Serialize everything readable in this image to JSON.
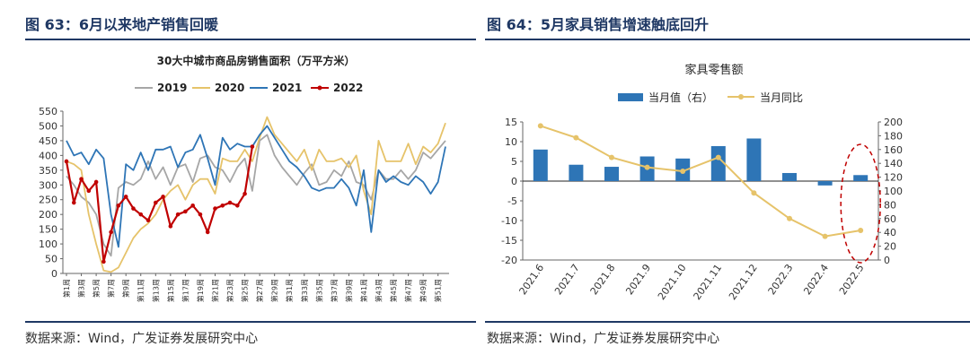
{
  "left": {
    "figure_title": "图 63：6月以来地产销售回暖",
    "source": "数据来源：Wind，广发证券发展研究中心"
  },
  "right": {
    "figure_title": "图 64：5月家具销售增速触底回升",
    "source": "数据来源：Wind，广发证券发展研究中心"
  },
  "chart_data": [
    {
      "type": "line",
      "title": "30大中城市商品房销售面积（万平方米）",
      "xlabel": "",
      "ylabel": "",
      "ylim": [
        0,
        550
      ],
      "yticks": [
        0,
        50,
        100,
        150,
        200,
        250,
        300,
        350,
        400,
        450,
        500,
        550
      ],
      "x_tick_labels": [
        "第1周",
        "第3周",
        "第5周",
        "第7周",
        "第9周",
        "第11周",
        "第13周",
        "第15周",
        "第17周",
        "第19周",
        "第21周",
        "第23周",
        "第25周",
        "第27周",
        "第29周",
        "第31周",
        "第33周",
        "第35周",
        "第37周",
        "第39周",
        "第41周",
        "第43周",
        "第45周",
        "第47周",
        "第49周",
        "第51周"
      ],
      "weeks": 52,
      "legend_position": "top",
      "grid": false,
      "colors": {
        "2019": "#a6a6a6",
        "2020": "#e6c36a",
        "2021": "#2e75b6",
        "2022": "#c00000"
      },
      "series": [
        {
          "name": "2019",
          "values": [
            330,
            300,
            260,
            240,
            200,
            100,
            60,
            290,
            310,
            300,
            320,
            380,
            320,
            360,
            300,
            360,
            370,
            310,
            390,
            400,
            360,
            350,
            310,
            360,
            390,
            280,
            450,
            470,
            400,
            360,
            330,
            300,
            340,
            370,
            300,
            310,
            350,
            330,
            380,
            310,
            300,
            250,
            350,
            320,
            320,
            350,
            320,
            350,
            410,
            390,
            420,
            450
          ]
        },
        {
          "name": "2020",
          "values": [
            380,
            370,
            350,
            200,
            100,
            10,
            5,
            20,
            70,
            120,
            150,
            170,
            200,
            250,
            280,
            300,
            250,
            300,
            320,
            320,
            270,
            390,
            380,
            380,
            420,
            380,
            460,
            530,
            470,
            440,
            410,
            380,
            420,
            350,
            420,
            380,
            380,
            390,
            360,
            400,
            280,
            200,
            450,
            380,
            380,
            380,
            440,
            370,
            430,
            410,
            440,
            510
          ]
        },
        {
          "name": "2021",
          "values": [
            450,
            400,
            410,
            370,
            420,
            390,
            200,
            90,
            370,
            350,
            410,
            350,
            420,
            420,
            430,
            360,
            410,
            420,
            470,
            390,
            300,
            460,
            420,
            440,
            430,
            430,
            470,
            500,
            460,
            420,
            380,
            360,
            330,
            290,
            280,
            290,
            290,
            320,
            290,
            230,
            350,
            140,
            350,
            310,
            330,
            310,
            300,
            330,
            310,
            270,
            310,
            430
          ]
        },
        {
          "name": "2022",
          "values": [
            380,
            240,
            320,
            280,
            310,
            40,
            140,
            230,
            260,
            220,
            200,
            180,
            240,
            260,
            160,
            200,
            210,
            230,
            200,
            140,
            220,
            230,
            240,
            230,
            270,
            430
          ]
        }
      ]
    },
    {
      "type": "bar",
      "title": "家具零售额",
      "categories": [
        "2021.6",
        "2021.7",
        "2021.8",
        "2021.9",
        "2021.10",
        "2021.11",
        "2021.12",
        "2022.3",
        "2022.4",
        "2022.5"
      ],
      "ylim_left": [
        -20,
        15
      ],
      "yticks_left": [
        -20,
        -15,
        -10,
        -5,
        0,
        5,
        10,
        15
      ],
      "ylim_right": [
        0,
        200
      ],
      "yticks_right": [
        0,
        20,
        40,
        60,
        80,
        100,
        120,
        140,
        160,
        180,
        200
      ],
      "legend_position": "top",
      "grid": false,
      "colors": {
        "bars": "#2e75b6",
        "line": "#e6c36a",
        "highlight": "#c00000"
      },
      "series": [
        {
          "name": "当月同比",
          "type": "line",
          "axis": "left",
          "values": [
            14,
            11,
            6,
            3.5,
            2.5,
            6,
            -3,
            -9.5,
            -14,
            -12.5
          ]
        },
        {
          "name": "当月值（右）",
          "type": "bar",
          "axis": "right",
          "values": [
            160,
            138,
            135,
            150,
            147,
            165,
            176,
            126,
            108,
            123
          ]
        }
      ]
    }
  ]
}
